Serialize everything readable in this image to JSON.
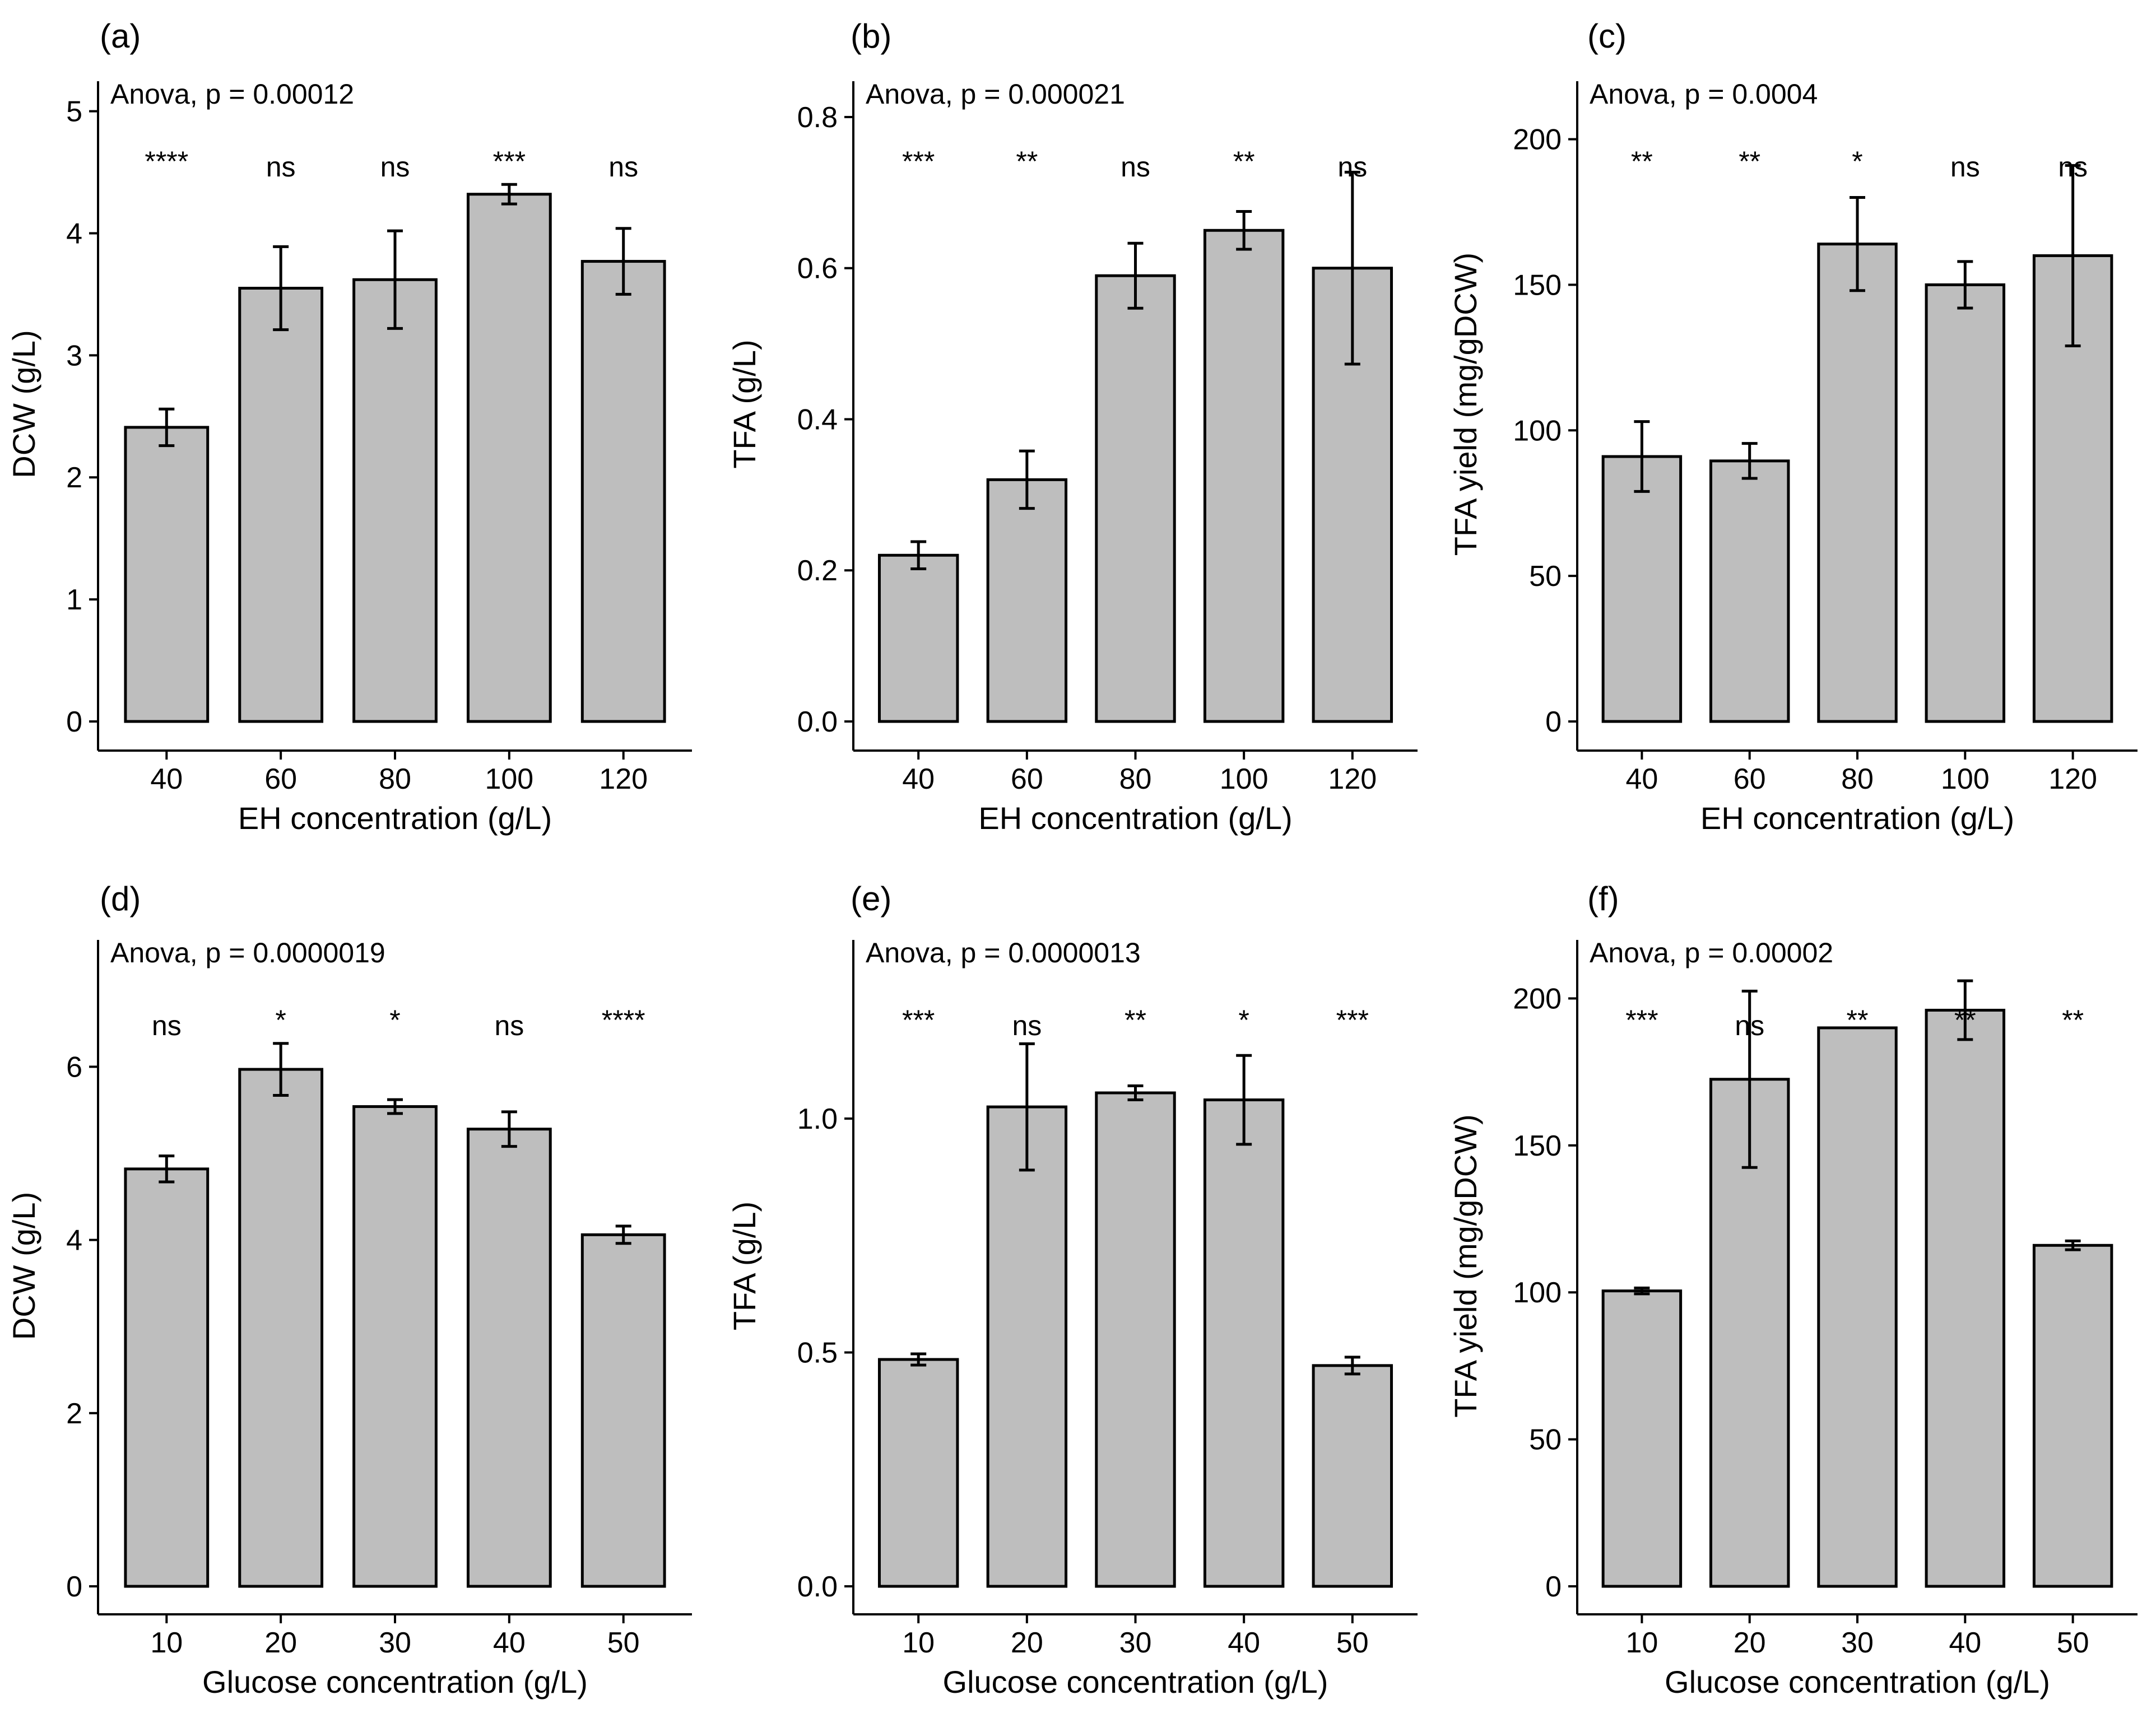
{
  "chart_data": [
    {
      "panel": "(a)",
      "type": "bar",
      "xlabel": "EH concentration (g/L)",
      "ylabel": "DCW (g/L)",
      "categories": [
        "40",
        "60",
        "80",
        "100",
        "120"
      ],
      "values": [
        2.41,
        3.55,
        3.62,
        4.32,
        3.77
      ],
      "errors": [
        0.15,
        0.34,
        0.4,
        0.08,
        0.27
      ],
      "significance": [
        "****",
        "ns",
        "ns",
        "***",
        "ns"
      ],
      "anova": "Anova, p = 0.00012",
      "ylim": [
        0,
        5.2
      ],
      "yticks": [
        0,
        1,
        2,
        3,
        4,
        5
      ],
      "ytick_labels": [
        "0",
        "1",
        "2",
        "3",
        "4",
        "5"
      ],
      "grid": false
    },
    {
      "panel": "(b)",
      "type": "bar",
      "xlabel": "EH concentration (g/L)",
      "ylabel": "TFA (g/L)",
      "categories": [
        "40",
        "60",
        "80",
        "100",
        "120"
      ],
      "values": [
        0.22,
        0.32,
        0.59,
        0.65,
        0.6
      ],
      "errors": [
        0.018,
        0.038,
        0.043,
        0.025,
        0.127
      ],
      "significance": [
        "***",
        "**",
        "ns",
        "**",
        "ns"
      ],
      "anova": "Anova, p = 0.000021",
      "ylim": [
        0,
        0.84
      ],
      "yticks": [
        0,
        0.2,
        0.4,
        0.6,
        0.8
      ],
      "ytick_labels": [
        "0.0",
        "0.2",
        "0.4",
        "0.6",
        "0.8"
      ],
      "grid": false
    },
    {
      "panel": "(c)",
      "type": "bar",
      "xlabel": "EH concentration (g/L)",
      "ylabel": "TFA yield (mg/gDCW)",
      "categories": [
        "40",
        "60",
        "80",
        "100",
        "120"
      ],
      "values": [
        91,
        89.5,
        164,
        150,
        160
      ],
      "errors": [
        12,
        6,
        16,
        8,
        31
      ],
      "significance": [
        "**",
        "**",
        "*",
        "ns",
        "ns"
      ],
      "anova": "Anova, p = 0.0004",
      "ylim": [
        0,
        218
      ],
      "yticks": [
        0,
        50,
        100,
        150,
        200
      ],
      "ytick_labels": [
        "0",
        "50",
        "100",
        "150",
        "200"
      ],
      "grid": false
    },
    {
      "panel": "(d)",
      "type": "bar",
      "xlabel": "Glucose concentration (g/L)",
      "ylabel": "DCW (g/L)",
      "categories": [
        "10",
        "20",
        "30",
        "40",
        "50"
      ],
      "values": [
        4.82,
        5.97,
        5.54,
        5.28,
        4.06
      ],
      "errors": [
        0.15,
        0.3,
        0.08,
        0.2,
        0.1
      ],
      "significance": [
        "ns",
        "*",
        "*",
        "ns",
        "****"
      ],
      "anova": "Anova, p = 0.0000019",
      "ylim": [
        0,
        7.4
      ],
      "yticks": [
        0,
        2,
        4,
        6
      ],
      "ytick_labels": [
        "0",
        "2",
        "4",
        "6"
      ],
      "grid": false
    },
    {
      "panel": "(e)",
      "type": "bar",
      "xlabel": "Glucose concentration (g/L)",
      "ylabel": "TFA (g/L)",
      "categories": [
        "10",
        "20",
        "30",
        "40",
        "50"
      ],
      "values": [
        0.485,
        1.025,
        1.055,
        1.04,
        0.472
      ],
      "errors": [
        0.012,
        0.135,
        0.015,
        0.095,
        0.018
      ],
      "significance": [
        "***",
        "ns",
        "**",
        "*",
        "***"
      ],
      "anova": "Anova, p = 0.0000013",
      "ylim": [
        0,
        1.37
      ],
      "yticks": [
        0,
        0.5,
        1.0
      ],
      "ytick_labels": [
        "0.0",
        "0.5",
        "1.0"
      ],
      "grid": false
    },
    {
      "panel": "(f)",
      "type": "bar",
      "xlabel": "Glucose concentration (g/L)",
      "ylabel": "TFA yield (mg/gDCW)",
      "categories": [
        "10",
        "20",
        "30",
        "40",
        "50"
      ],
      "values": [
        100.5,
        172.5,
        190,
        196,
        116
      ],
      "errors": [
        1,
        30,
        0,
        10,
        1.5
      ],
      "significance": [
        "***",
        "ns",
        "**",
        "**",
        "**"
      ],
      "anova": "Anova, p = 0.00002",
      "ylim": [
        0,
        218
      ],
      "yticks": [
        0,
        50,
        100,
        150,
        200
      ],
      "ytick_labels": [
        "0",
        "50",
        "100",
        "150",
        "200"
      ],
      "grid": false
    }
  ]
}
